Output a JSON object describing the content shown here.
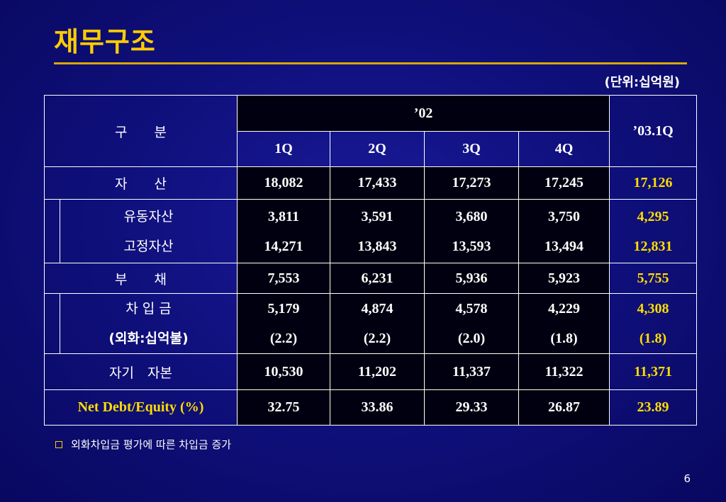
{
  "title": "재무구조",
  "unit": "(단위:십억원)",
  "header": {
    "category": "구　　분",
    "year": "’02",
    "quarters": [
      "1Q",
      "2Q",
      "3Q",
      "4Q"
    ],
    "latest": "’03.1Q"
  },
  "rows": {
    "assets": {
      "label": "자　　산",
      "values": [
        "18,082",
        "17,433",
        "17,273",
        "17,245"
      ],
      "latest": "17,126"
    },
    "current_assets": {
      "label": "유동자산",
      "values": [
        "3,811",
        "3,591",
        "3,680",
        "3,750"
      ],
      "latest": "4,295"
    },
    "fixed_assets": {
      "label": "고정자산",
      "values": [
        "14,271",
        "13,843",
        "13,593",
        "13,494"
      ],
      "latest": "12,831"
    },
    "liabilities": {
      "label": "부　　채",
      "values": [
        "7,553",
        "6,231",
        "5,936",
        "5,923"
      ],
      "latest": "5,755"
    },
    "borrowings": {
      "label": "차 입 금",
      "values": [
        "5,179",
        "4,874",
        "4,578",
        "4,229"
      ],
      "latest": "4,308"
    },
    "fx_borrowings": {
      "label": "(외화:십억불)",
      "values": [
        "(2.2)",
        "(2.2)",
        "(2.0)",
        "(1.8)"
      ],
      "latest": "(1.8)"
    },
    "equity": {
      "label": "자기　자본",
      "values": [
        "10,530",
        "11,202",
        "11,337",
        "11,322"
      ],
      "latest": "11,371"
    },
    "net_debt_equity": {
      "label": "Net Debt/Equity (%)",
      "values": [
        "32.75",
        "33.86",
        "29.33",
        "26.87"
      ],
      "latest": "23.89"
    }
  },
  "note": "외화차입금 평가에 따른 차입금 증가",
  "page_number": "6"
}
